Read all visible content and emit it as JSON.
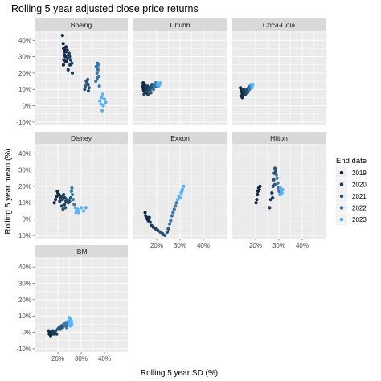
{
  "chart_data": {
    "type": "scatter",
    "title": "Rolling 5 year adjusted close price returns",
    "xlabel": "Rolling 5 year SD (%)",
    "ylabel": "Rolling 5 year mean (%)",
    "xlim": [
      10,
      50
    ],
    "ylim": [
      -12,
      46
    ],
    "x_ticks": [
      20,
      30,
      40
    ],
    "x_tick_labels": [
      "20%",
      "30%",
      "40%"
    ],
    "y_ticks": [
      -10,
      0,
      10,
      20,
      30,
      40
    ],
    "y_tick_labels": [
      "-10%",
      "0%",
      "10%",
      "20%",
      "30%",
      "40%"
    ],
    "grid": true,
    "legend": {
      "title": "End date",
      "placement": "right",
      "entries": [
        "2019",
        "2020",
        "2021",
        "2022",
        "2023"
      ],
      "colors": [
        "#132b43",
        "#1d3f5e",
        "#29557b",
        "#3b76a8",
        "#56b1f7"
      ]
    },
    "facets": [
      {
        "name": "Boeing",
        "points": [
          [
            22.0,
            43,
            0
          ],
          [
            22.3,
            38,
            0
          ],
          [
            22.5,
            35,
            0
          ],
          [
            23.0,
            33,
            0
          ],
          [
            22.8,
            31,
            0
          ],
          [
            23.5,
            36,
            0
          ],
          [
            24.0,
            34,
            0
          ],
          [
            22.6,
            28,
            0
          ],
          [
            23.2,
            30,
            0
          ],
          [
            24.5,
            31,
            0
          ],
          [
            22.4,
            25,
            0
          ],
          [
            23.8,
            27,
            0
          ],
          [
            24.2,
            29,
            1
          ],
          [
            25.0,
            30,
            1
          ],
          [
            25.5,
            28,
            1
          ],
          [
            26.0,
            26,
            1
          ],
          [
            24.8,
            32,
            1
          ],
          [
            23.6,
            33,
            1
          ],
          [
            26.2,
            20,
            1
          ],
          [
            25.2,
            25,
            1
          ],
          [
            24.4,
            22,
            1
          ],
          [
            22.9,
            34,
            0
          ],
          [
            23.4,
            27,
            0
          ],
          [
            31.5,
            10,
            2
          ],
          [
            32.2,
            15,
            2
          ],
          [
            32.8,
            16,
            2
          ],
          [
            33.0,
            13,
            2
          ],
          [
            33.4,
            11,
            2
          ],
          [
            32.5,
            14,
            2
          ],
          [
            31.8,
            12,
            2
          ],
          [
            33.1,
            9,
            2
          ],
          [
            36.5,
            24,
            3
          ],
          [
            37.0,
            26,
            3
          ],
          [
            37.2,
            22,
            3
          ],
          [
            36.8,
            20,
            3
          ],
          [
            37.5,
            18,
            3
          ],
          [
            36.3,
            15,
            3
          ],
          [
            37.8,
            12,
            3
          ],
          [
            37.0,
            23,
            3
          ],
          [
            36.9,
            17,
            3
          ],
          [
            37.4,
            25,
            3
          ],
          [
            38.0,
            3,
            4
          ],
          [
            38.5,
            1,
            4
          ],
          [
            39.0,
            -3,
            4
          ],
          [
            38.8,
            5,
            4
          ],
          [
            39.5,
            0,
            4
          ],
          [
            40.0,
            4,
            4
          ],
          [
            40.5,
            2,
            4
          ],
          [
            39.3,
            7,
            4
          ]
        ]
      },
      {
        "name": "Chubb",
        "points": [
          [
            14.0,
            12,
            0
          ],
          [
            14.3,
            10,
            0
          ],
          [
            14.5,
            9,
            0
          ],
          [
            14.2,
            14,
            0
          ],
          [
            14.8,
            13,
            0
          ],
          [
            15.0,
            11,
            0
          ],
          [
            15.3,
            8,
            0
          ],
          [
            14.6,
            7,
            1
          ],
          [
            15.6,
            10,
            1
          ],
          [
            16.0,
            12,
            1
          ],
          [
            16.4,
            9,
            1
          ],
          [
            16.8,
            11,
            1
          ],
          [
            17.2,
            10,
            2
          ],
          [
            17.5,
            8,
            2
          ],
          [
            17.8,
            12,
            2
          ],
          [
            18.0,
            13,
            2
          ],
          [
            18.3,
            11,
            2
          ],
          [
            18.6,
            10,
            3
          ],
          [
            18.9,
            12,
            3
          ],
          [
            19.2,
            13,
            3
          ],
          [
            19.5,
            14,
            3
          ],
          [
            19.8,
            12,
            3
          ],
          [
            20.2,
            13,
            4
          ],
          [
            20.5,
            14,
            4
          ],
          [
            20.8,
            12,
            4
          ],
          [
            21.2,
            13,
            4
          ],
          [
            21.6,
            14,
            4
          ],
          [
            16.2,
            7,
            1
          ],
          [
            17.0,
            9,
            2
          ]
        ]
      },
      {
        "name": "Coca-Cola",
        "points": [
          [
            13.5,
            11,
            0
          ],
          [
            13.8,
            10,
            0
          ],
          [
            14.0,
            9,
            0
          ],
          [
            14.2,
            8,
            0
          ],
          [
            14.5,
            7,
            0
          ],
          [
            13.7,
            6,
            0
          ],
          [
            14.8,
            10,
            1
          ],
          [
            15.0,
            9,
            1
          ],
          [
            15.3,
            8,
            1
          ],
          [
            15.6,
            7,
            1
          ],
          [
            15.9,
            9,
            1
          ],
          [
            16.2,
            10,
            2
          ],
          [
            16.5,
            8,
            2
          ],
          [
            16.8,
            9,
            2
          ],
          [
            17.0,
            11,
            2
          ],
          [
            17.3,
            10,
            3
          ],
          [
            17.6,
            12,
            3
          ],
          [
            17.9,
            11,
            3
          ],
          [
            18.2,
            13,
            4
          ],
          [
            18.5,
            12,
            4
          ],
          [
            18.8,
            13,
            4
          ],
          [
            18.4,
            11,
            4
          ],
          [
            14.3,
            5,
            0
          ]
        ]
      },
      {
        "name": "Disney",
        "points": [
          [
            18.5,
            10,
            0
          ],
          [
            19.0,
            12,
            0
          ],
          [
            19.5,
            14,
            0
          ],
          [
            20.0,
            16,
            0
          ],
          [
            20.5,
            15,
            0
          ],
          [
            21.0,
            13,
            0
          ],
          [
            19.8,
            17,
            0
          ],
          [
            20.8,
            11,
            1
          ],
          [
            21.5,
            14,
            1
          ],
          [
            22.0,
            12,
            1
          ],
          [
            22.5,
            15,
            1
          ],
          [
            23.0,
            13,
            1
          ],
          [
            23.5,
            11,
            1
          ],
          [
            24.0,
            12,
            2
          ],
          [
            24.5,
            10,
            2
          ],
          [
            22.8,
            9,
            1
          ],
          [
            21.7,
            8,
            1
          ],
          [
            22.2,
            6,
            2
          ],
          [
            23.2,
            7,
            2
          ],
          [
            25.0,
            11,
            2
          ],
          [
            25.5,
            13,
            2
          ],
          [
            25.8,
            17,
            3
          ],
          [
            26.0,
            19,
            3
          ],
          [
            26.2,
            15,
            3
          ],
          [
            26.5,
            12,
            3
          ],
          [
            27.0,
            9,
            3
          ],
          [
            27.5,
            7,
            4
          ],
          [
            28.0,
            5,
            4
          ],
          [
            28.5,
            6,
            4
          ],
          [
            29.0,
            4,
            4
          ],
          [
            30.0,
            7,
            4
          ],
          [
            31.0,
            5,
            4
          ],
          [
            32.0,
            7,
            4
          ],
          [
            27.8,
            4,
            4
          ]
        ]
      },
      {
        "name": "Exxon",
        "points": [
          [
            15.0,
            4,
            0
          ],
          [
            15.3,
            2,
            0
          ],
          [
            15.6,
            1,
            0
          ],
          [
            16.0,
            0,
            0
          ],
          [
            16.4,
            -1,
            0
          ],
          [
            16.8,
            1,
            0
          ],
          [
            17.2,
            -2,
            1
          ],
          [
            17.8,
            -4,
            1
          ],
          [
            18.5,
            -5,
            1
          ],
          [
            19.5,
            -6,
            1
          ],
          [
            20.5,
            -7,
            1
          ],
          [
            21.5,
            -8,
            2
          ],
          [
            22.5,
            -9,
            2
          ],
          [
            23.5,
            -10,
            2
          ],
          [
            24.5,
            -8,
            2
          ],
          [
            25.0,
            -6,
            2
          ],
          [
            25.5,
            -3,
            3
          ],
          [
            26.0,
            -1,
            3
          ],
          [
            26.5,
            2,
            3
          ],
          [
            27.0,
            4,
            3
          ],
          [
            27.5,
            6,
            3
          ],
          [
            28.0,
            8,
            3
          ],
          [
            28.5,
            10,
            3
          ],
          [
            29.0,
            12,
            4
          ],
          [
            29.5,
            14,
            4
          ],
          [
            30.0,
            13,
            4
          ],
          [
            30.5,
            16,
            4
          ],
          [
            31.0,
            18,
            4
          ],
          [
            31.5,
            20,
            4
          ],
          [
            30.8,
            17,
            4
          ]
        ]
      },
      {
        "name": "Hilton",
        "points": [
          [
            20.5,
            12,
            0
          ],
          [
            20.8,
            15,
            0
          ],
          [
            21.0,
            17,
            0
          ],
          [
            21.3,
            19,
            0
          ],
          [
            21.6,
            18,
            0
          ],
          [
            21.9,
            20,
            0
          ],
          [
            20.2,
            10,
            0
          ],
          [
            26.0,
            7,
            1
          ],
          [
            26.5,
            12,
            1
          ],
          [
            27.0,
            16,
            1
          ],
          [
            27.5,
            20,
            2
          ],
          [
            27.8,
            24,
            2
          ],
          [
            28.0,
            28,
            2
          ],
          [
            28.3,
            31,
            2
          ],
          [
            28.6,
            29,
            2
          ],
          [
            28.9,
            27,
            3
          ],
          [
            29.2,
            25,
            3
          ],
          [
            29.5,
            22,
            3
          ],
          [
            29.8,
            19,
            3
          ],
          [
            30.1,
            17,
            3
          ],
          [
            30.4,
            15,
            4
          ],
          [
            30.7,
            19,
            4
          ],
          [
            31.0,
            17,
            4
          ],
          [
            31.3,
            16,
            4
          ],
          [
            31.6,
            18,
            4
          ],
          [
            28.2,
            21,
            2
          ],
          [
            27.3,
            13,
            1
          ]
        ]
      },
      {
        "name": "IBM",
        "points": [
          [
            16.0,
            1,
            0
          ],
          [
            16.3,
            -1,
            0
          ],
          [
            16.6,
            0,
            0
          ],
          [
            16.9,
            -2,
            0
          ],
          [
            17.2,
            -1,
            0
          ],
          [
            17.5,
            0,
            0
          ],
          [
            17.8,
            1,
            1
          ],
          [
            18.2,
            -1,
            1
          ],
          [
            18.6,
            0,
            1
          ],
          [
            19.0,
            1,
            1
          ],
          [
            19.5,
            -1,
            1
          ],
          [
            20.0,
            2,
            2
          ],
          [
            20.5,
            3,
            2
          ],
          [
            21.0,
            2,
            2
          ],
          [
            21.5,
            4,
            2
          ],
          [
            22.0,
            3,
            2
          ],
          [
            22.5,
            5,
            3
          ],
          [
            23.0,
            4,
            3
          ],
          [
            23.5,
            6,
            3
          ],
          [
            24.0,
            5,
            3
          ],
          [
            24.5,
            7,
            4
          ],
          [
            25.0,
            6,
            4
          ],
          [
            25.5,
            8,
            4
          ],
          [
            25.8,
            7,
            4
          ],
          [
            24.8,
            9,
            4
          ],
          [
            26.0,
            5,
            4
          ],
          [
            23.8,
            3,
            3
          ],
          [
            25.3,
            4,
            4
          ]
        ]
      }
    ]
  }
}
